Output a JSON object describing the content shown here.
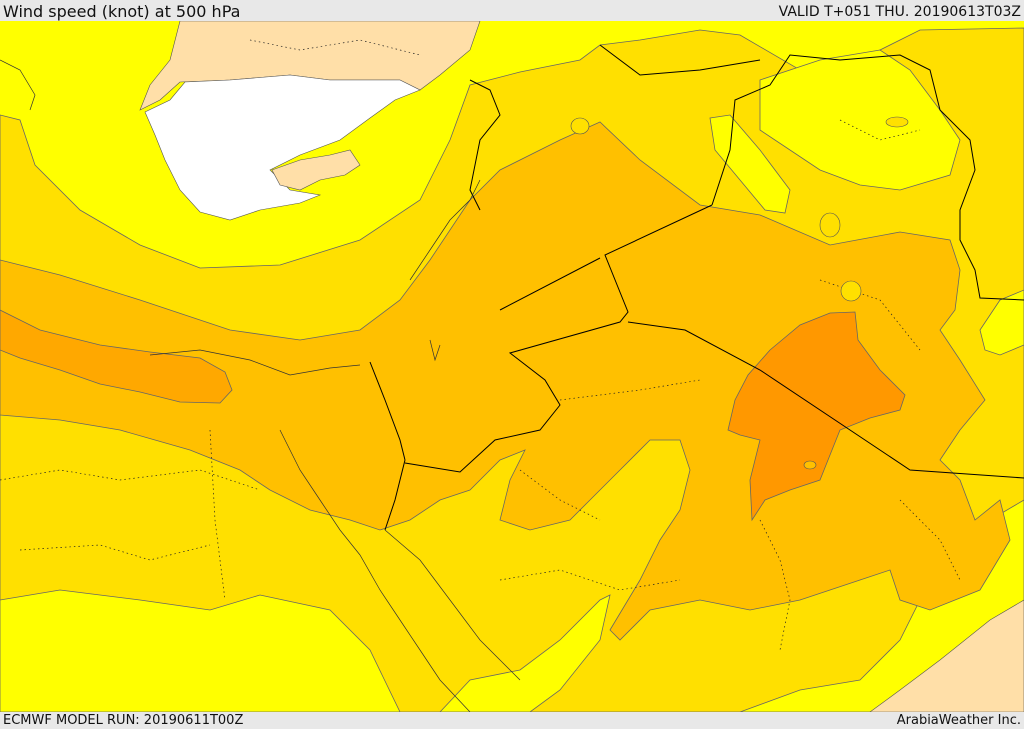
{
  "header": {
    "title": "Wind speed (knot) at 500 hPa",
    "valid_time": "VALID T+051 THU. 20190613T03Z"
  },
  "footer": {
    "model_run": "ECMWF MODEL RUN: 20190611T00Z",
    "provider": "ArabiaWeather Inc."
  },
  "colors": {
    "band_lightest": "#ffff00",
    "band_light": "#ffe000",
    "band_mid": "#ffc000",
    "band_strong": "#ffa800",
    "band_strongest": "#ff9800",
    "land_masked": "#ffdfa8",
    "sea_masked": "#ffffff"
  }
}
